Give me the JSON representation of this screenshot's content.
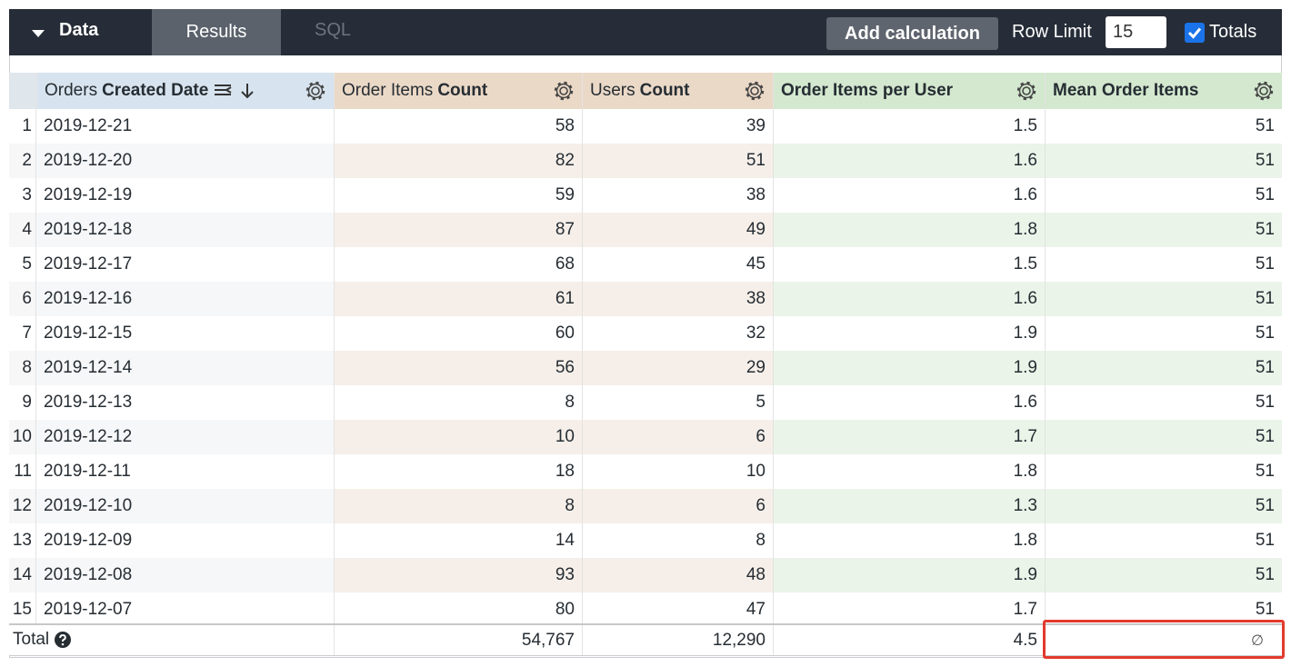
{
  "toolbar": {
    "tabs": [
      "Data",
      "Results",
      "SQL"
    ],
    "add_calculation": "Add calculation",
    "row_limit_label": "Row Limit",
    "row_limit": 15,
    "totals_label": "Totals"
  },
  "table": {
    "columns": [
      {
        "view": "Orders",
        "field": "Created Date"
      },
      {
        "view": "Order Items",
        "field": "Count"
      },
      {
        "view": "Users",
        "field": "Count"
      },
      {
        "field": "Order Items per User"
      },
      {
        "field": "Mean Order Items"
      }
    ],
    "rows": [
      [
        1,
        "2019-12-21",
        58,
        39,
        1.5,
        51
      ],
      [
        2,
        "2019-12-20",
        82,
        51,
        1.6,
        51
      ],
      [
        3,
        "2019-12-19",
        59,
        38,
        1.6,
        51
      ],
      [
        4,
        "2019-12-18",
        87,
        49,
        1.8,
        51
      ],
      [
        5,
        "2019-12-17",
        68,
        45,
        1.5,
        51
      ],
      [
        6,
        "2019-12-16",
        61,
        38,
        1.6,
        51
      ],
      [
        7,
        "2019-12-15",
        60,
        32,
        1.9,
        51
      ],
      [
        8,
        "2019-12-14",
        56,
        29,
        1.9,
        51
      ],
      [
        9,
        "2019-12-13",
        8,
        5,
        1.6,
        51
      ],
      [
        10,
        "2019-12-12",
        10,
        6,
        1.7,
        51
      ],
      [
        11,
        "2019-12-11",
        18,
        10,
        1.8,
        51
      ],
      [
        12,
        "2019-12-10",
        8,
        6,
        1.3,
        51
      ],
      [
        13,
        "2019-12-09",
        14,
        8,
        1.8,
        51
      ],
      [
        14,
        "2019-12-08",
        93,
        48,
        1.9,
        51
      ],
      [
        15,
        "2019-12-07",
        80,
        47,
        1.7,
        51
      ]
    ],
    "totals": {
      "label": "Total",
      "values": [
        "54,767",
        "12,290",
        "4.5",
        "∅"
      ]
    }
  }
}
